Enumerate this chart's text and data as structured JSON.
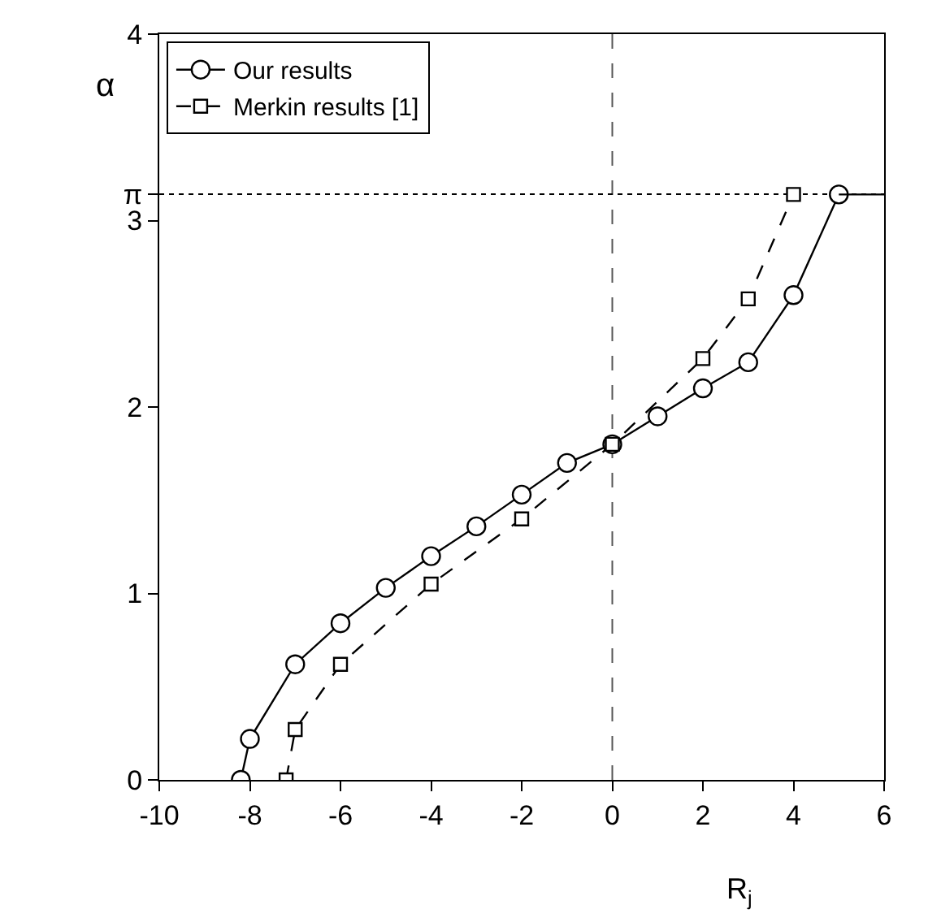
{
  "chart_data": {
    "type": "line",
    "xlabel": "R$_{j}$",
    "ylabel": "α",
    "xlim": [
      -10,
      6
    ],
    "xticks": [
      -10,
      -8,
      -6,
      -4,
      -2,
      0,
      2,
      4,
      6
    ],
    "ylim": [
      0,
      4
    ],
    "yticks": [
      0,
      1,
      2,
      {
        "value": 3,
        "label": "3"
      },
      {
        "value": 3.14159,
        "label": "π"
      },
      4
    ],
    "legend": "top left",
    "grid": false,
    "series": [
      {
        "name": "Our results",
        "color": "#000000",
        "marker": "circle",
        "line_style": "solid",
        "x": [
          -8.2,
          -8.0,
          -7,
          -6,
          -5,
          -4,
          -3,
          -2,
          -1,
          0,
          1,
          2,
          3,
          4,
          5
        ],
        "values": [
          0,
          0.22,
          0.62,
          0.84,
          1.03,
          1.2,
          1.36,
          1.53,
          1.7,
          1.8,
          1.95,
          2.1,
          2.24,
          2.6,
          3.14
        ]
      },
      {
        "name": "Merkin results [1]",
        "color": "#000000",
        "marker": "square",
        "line_style": "dashed",
        "x": [
          -7.2,
          -7.0,
          -6,
          -4,
          -2,
          0,
          2,
          3,
          4
        ],
        "values": [
          0,
          0.27,
          0.62,
          1.05,
          1.4,
          1.8,
          2.26,
          2.58,
          3.14
        ]
      },
      {
        "color": "#000000",
        "marker": "none",
        "line_style": "solid",
        "x": [
          5,
          6
        ],
        "values": [
          3.14,
          3.14
        ]
      }
    ],
    "ref_lines": [
      {
        "axis": "x",
        "value": 0,
        "color": "#555555",
        "line_style": "dashed"
      },
      {
        "axis": "y",
        "value": 3.14159,
        "color": "#000000",
        "line_style": "dotted"
      }
    ]
  }
}
